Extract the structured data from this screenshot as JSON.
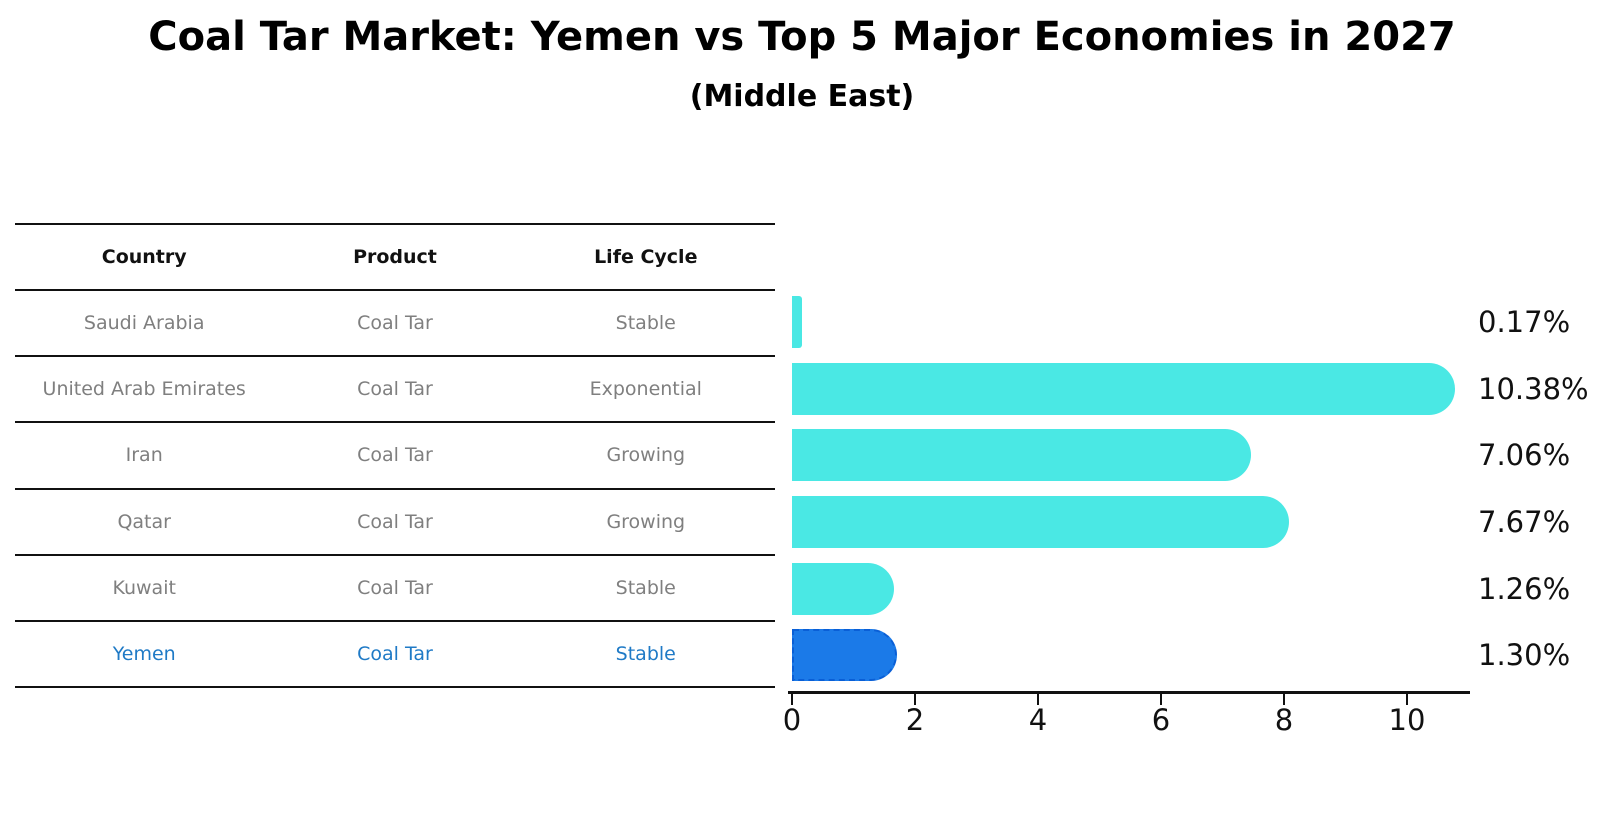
{
  "header": {
    "title": "Coal Tar Market: Yemen vs Top 5 Major Economies in 2027",
    "subtitle": "(Middle East)"
  },
  "table": {
    "columns": [
      "Country",
      "Product",
      "Life Cycle"
    ],
    "rows": [
      {
        "country": "Saudi Arabia",
        "product": "Coal Tar",
        "life_cycle": "Stable",
        "highlight": false
      },
      {
        "country": "United Arab Emirates",
        "product": "Coal Tar",
        "life_cycle": "Exponential",
        "highlight": false
      },
      {
        "country": "Iran",
        "product": "Coal Tar",
        "life_cycle": "Growing",
        "highlight": false
      },
      {
        "country": "Qatar",
        "product": "Coal Tar",
        "life_cycle": "Growing",
        "highlight": false
      },
      {
        "country": "Kuwait",
        "product": "Coal Tar",
        "life_cycle": "Stable",
        "highlight": false
      },
      {
        "country": "Yemen",
        "product": "Coal Tar",
        "life_cycle": "Stable",
        "highlight": true
      }
    ]
  },
  "chart_data": {
    "type": "bar",
    "orientation": "horizontal",
    "title": "Coal Tar Market: Yemen vs Top 5 Major Economies in 2027",
    "subtitle": "(Middle East)",
    "categories": [
      "Saudi Arabia",
      "United Arab Emirates",
      "Iran",
      "Qatar",
      "Kuwait",
      "Yemen"
    ],
    "values": [
      0.17,
      10.38,
      7.06,
      7.67,
      1.26,
      1.3
    ],
    "value_labels": [
      "0.17%",
      "10.38%",
      "7.06%",
      "7.67%",
      "1.26%",
      "1.30%"
    ],
    "unit": "%",
    "xlim": [
      0,
      11
    ],
    "x_ticks": [
      0,
      2,
      4,
      6,
      8,
      10
    ],
    "grid": false,
    "legend": "none",
    "bar_color": "#4AE8E4",
    "highlight_bar_color": "#1B7AE8",
    "highlight_text_color": "#1F7AC6",
    "highlight_index": 5
  }
}
